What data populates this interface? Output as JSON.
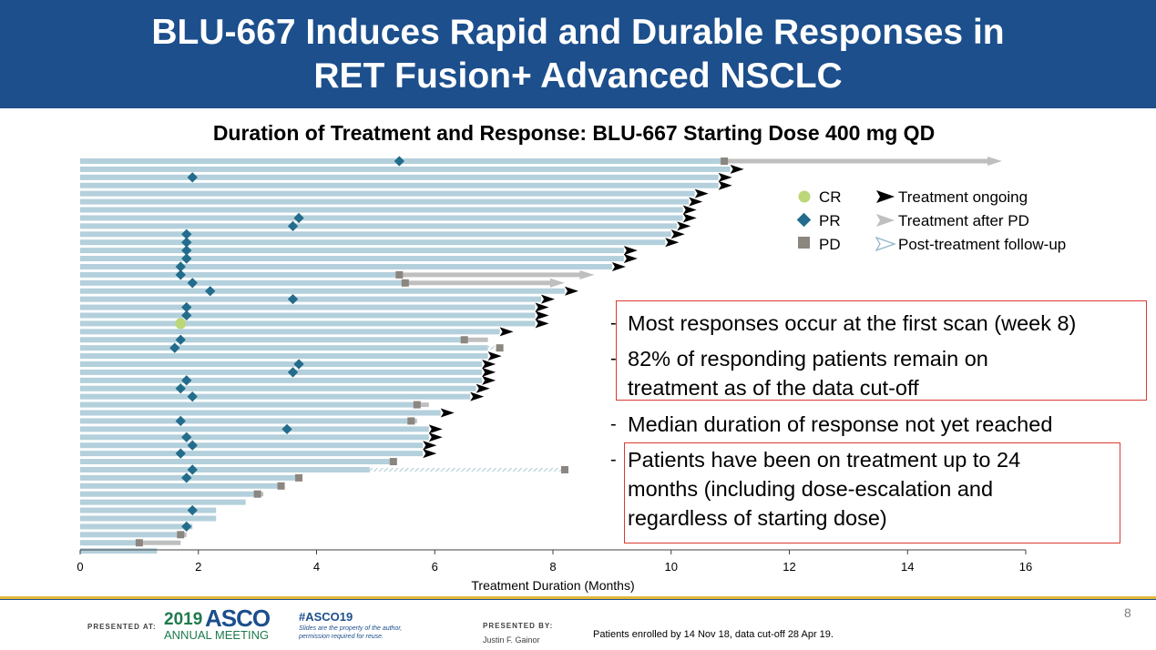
{
  "slide": {
    "title_line1": "BLU-667 Induces Rapid and Durable Responses in",
    "title_line2": "RET Fusion+ Advanced NSCLC",
    "subtitle": "Duration of Treatment and Response: BLU-667 Starting Dose 400 mg QD",
    "page_number": "8"
  },
  "colors": {
    "banner": "#1c4f8c",
    "bar": "#b3d0dc",
    "pr": "#236c8c",
    "cr": "#bcd67a",
    "pd": "#8c8680",
    "ongoing": "#000000",
    "after_pd": "#bfbfbf",
    "box": "#d93a32"
  },
  "legend": {
    "cr": "CR",
    "pr": "PR",
    "pd": "PD",
    "ongoing": "Treatment ongoing",
    "after_pd": "Treatment after PD",
    "follow_up": "Post-treatment follow-up"
  },
  "bullets": [
    {
      "lines": [
        "Most responses occur at the first scan (week 8)"
      ]
    },
    {
      "lines": [
        "82% of responding patients remain on",
        "treatment as of the data cut-off"
      ]
    },
    {
      "lines": [
        "Median duration of response not yet reached"
      ]
    },
    {
      "lines": [
        "Patients have been on treatment up to 24",
        "months (including dose-escalation and",
        "regardless of starting dose)"
      ]
    }
  ],
  "chart_data": {
    "type": "bar",
    "orientation": "horizontal",
    "title": "Duration of Treatment and Response: BLU-667 Starting Dose 400 mg QD",
    "xlabel": "Treatment Duration (Months)",
    "xlim": [
      0,
      16
    ],
    "xticks": [
      0,
      2,
      4,
      6,
      8,
      10,
      12,
      14,
      16
    ],
    "patients": [
      {
        "dur": 10.9,
        "pr": 5.4,
        "pd": 10.9,
        "after_pd_to": 15.6
      },
      {
        "dur": 11.0,
        "ongoing": true
      },
      {
        "dur": 10.8,
        "pr": 1.9,
        "ongoing": true
      },
      {
        "dur": 10.8,
        "ongoing": true
      },
      {
        "dur": 10.4,
        "ongoing": true
      },
      {
        "dur": 10.3,
        "ongoing": true
      },
      {
        "dur": 10.2,
        "ongoing": true
      },
      {
        "dur": 10.2,
        "pr": 3.7,
        "ongoing": true
      },
      {
        "dur": 10.1,
        "pr": 3.6,
        "ongoing": true
      },
      {
        "dur": 10.0,
        "pr": 1.8,
        "ongoing": true
      },
      {
        "dur": 9.9,
        "pr": 1.8,
        "ongoing": true
      },
      {
        "dur": 9.2,
        "pr": 1.8,
        "ongoing": true
      },
      {
        "dur": 9.2,
        "pr": 1.8,
        "ongoing": true
      },
      {
        "dur": 9.0,
        "pr": 1.7,
        "ongoing": true
      },
      {
        "dur": 5.4,
        "pr": 1.7,
        "pd": 5.4,
        "after_pd_to": 8.7
      },
      {
        "dur": 5.5,
        "pr": 1.9,
        "pd": 5.5,
        "after_pd_to": 8.2
      },
      {
        "dur": 8.2,
        "pr": 2.2,
        "ongoing": true
      },
      {
        "dur": 7.8,
        "pr": 3.6,
        "ongoing": true
      },
      {
        "dur": 7.7,
        "pr": 1.8,
        "ongoing": true
      },
      {
        "dur": 7.7,
        "pr": 1.8,
        "ongoing": true
      },
      {
        "dur": 7.7,
        "cr": 1.7,
        "ongoing": true
      },
      {
        "dur": 7.1,
        "ongoing": true
      },
      {
        "dur": 6.5,
        "pr": 1.7,
        "pd": 6.5,
        "after_pd_to": 6.9
      },
      {
        "dur": 7.1,
        "pr": 1.6,
        "pd": 7.1,
        "follow_up_from": 6.9
      },
      {
        "dur": 6.9,
        "ongoing": true
      },
      {
        "dur": 6.8,
        "pr": 3.7,
        "ongoing": true
      },
      {
        "dur": 6.8,
        "pr": 3.6,
        "ongoing": true
      },
      {
        "dur": 6.8,
        "pr": 1.8,
        "ongoing": true
      },
      {
        "dur": 6.7,
        "pr": 1.7,
        "ongoing": true
      },
      {
        "dur": 6.6,
        "pr": 1.9,
        "ongoing": true
      },
      {
        "dur": 5.7,
        "pd": 5.7,
        "after_pd_to": 5.9
      },
      {
        "dur": 6.1,
        "ongoing": true
      },
      {
        "dur": 5.6,
        "pr": 1.7,
        "pd": 5.6,
        "after_pd_to": 5.7
      },
      {
        "dur": 5.9,
        "pr": 3.5,
        "ongoing": true
      },
      {
        "dur": 5.9,
        "pr": 1.8,
        "ongoing": true
      },
      {
        "dur": 5.8,
        "pr": 1.9,
        "ongoing": true
      },
      {
        "dur": 5.8,
        "pr": 1.7,
        "ongoing": true
      },
      {
        "dur": 5.3,
        "pd": 5.3
      },
      {
        "dur": 4.9,
        "pr": 1.9,
        "pd": 8.2,
        "follow_up_from": 4.9
      },
      {
        "dur": 3.7,
        "pr": 1.8,
        "pd": 3.7
      },
      {
        "dur": 3.4,
        "pd": 3.4
      },
      {
        "dur": 3.0,
        "pd": 3.0,
        "after_pd_to": 3.1
      },
      {
        "dur": 2.8
      },
      {
        "dur": 2.3,
        "pr": 1.9
      },
      {
        "dur": 2.3
      },
      {
        "dur": 1.9,
        "pr": 1.8
      },
      {
        "dur": 1.7,
        "pd": 1.7,
        "after_pd_to": 1.8
      },
      {
        "dur": 1.0,
        "pd": 1.0,
        "after_pd_to": 1.7
      },
      {
        "dur": 1.3
      }
    ]
  },
  "footer": {
    "presented_at": "PRESENTED AT:",
    "asco_year": "2019",
    "asco_brand": "ASCO",
    "asco_meeting": "ANNUAL MEETING",
    "hashtag": "#ASCO19",
    "slides_note1": "Slides are the property of the author,",
    "slides_note2": "permission required for reuse.",
    "presented_by": "PRESENTED BY:",
    "presenter": "Justin F. Gainor",
    "enrollment_note": "Patients enrolled by 14 Nov 18, data cut-off 28 Apr 19."
  }
}
